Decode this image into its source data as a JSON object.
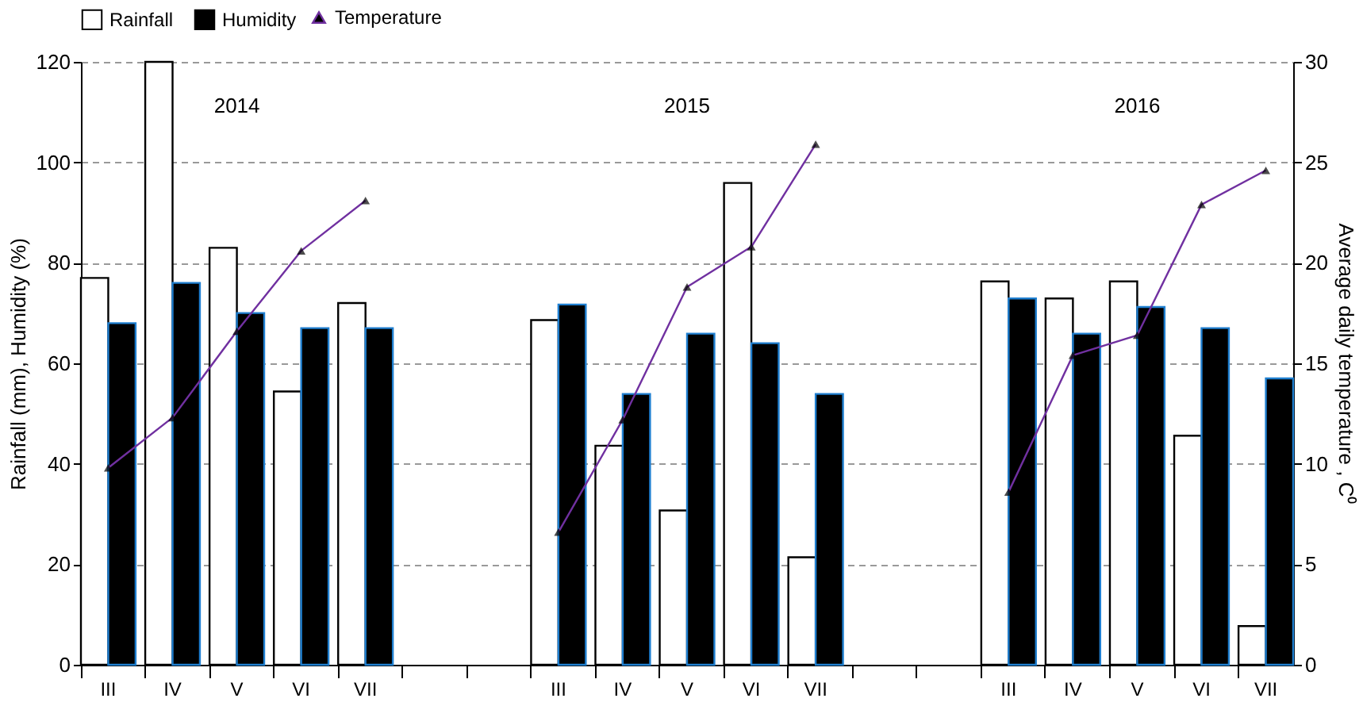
{
  "chart_data": {
    "type": "bar",
    "ylabel": "Rainfall (mm), Humidity (%)",
    "y2label": "Average daily temperature , C⁰",
    "categories": [
      "III",
      "IV",
      "V",
      "VI",
      "VII",
      null,
      null,
      "III",
      "IV",
      "V",
      "VI",
      "VII",
      null,
      null,
      "III",
      "IV",
      "V",
      "VI",
      "VII"
    ],
    "series": [
      {
        "name": "Rainfall",
        "color": "#ffffff",
        "values": [
          77,
          120,
          83,
          54.4,
          72,
          null,
          null,
          68.6,
          43.6,
          30.7,
          95.9,
          21.4,
          null,
          null,
          76.3,
          72.9,
          76.3,
          45.6,
          7.7
        ]
      },
      {
        "name": "Humidity",
        "color": "#000000",
        "values": [
          68,
          76,
          70,
          67,
          67,
          null,
          null,
          71.7,
          53.9,
          65.9,
          64,
          53.9,
          null,
          null,
          72.9,
          65.9,
          71.2,
          67,
          57
        ]
      },
      {
        "name": "Temperature",
        "type": "line",
        "axis": "y2",
        "color": "#7030a0",
        "marker": "triangle",
        "values": [
          9.8,
          12.3,
          16.6,
          20.6,
          23.1,
          null,
          null,
          6.6,
          12.2,
          18.8,
          20.8,
          25.9,
          null,
          null,
          8.6,
          15.4,
          16.4,
          22.9,
          24.6
        ]
      }
    ],
    "ylim": [
      0,
      120
    ],
    "yticks": [
      0,
      20,
      40,
      60,
      80,
      100,
      120
    ],
    "y2lim": [
      0,
      30
    ],
    "y2ticks": [
      0,
      5,
      10,
      15,
      20,
      25,
      30
    ],
    "annotations": [
      "2014",
      "2015",
      "2016"
    ],
    "grid": "y",
    "legend": "top"
  }
}
